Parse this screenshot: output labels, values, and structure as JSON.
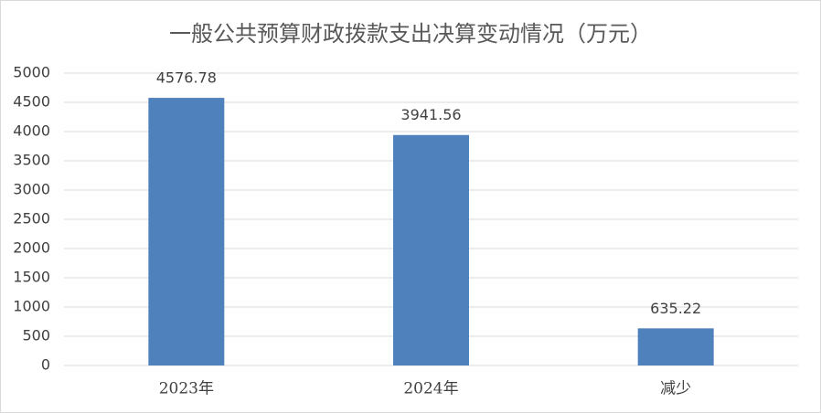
{
  "chart_data": {
    "type": "bar",
    "title": "一般公共预算财政拨款支出决算变动情况（万元）",
    "categories": [
      "2023年",
      "2024年",
      "减少"
    ],
    "values": [
      4576.78,
      3941.56,
      635.22
    ],
    "color": "#4f81bd",
    "ylim": [
      0,
      5000
    ],
    "yticks": [
      0,
      500,
      1000,
      1500,
      2000,
      2500,
      3000,
      3500,
      4000,
      4500,
      5000
    ],
    "grid": true
  }
}
